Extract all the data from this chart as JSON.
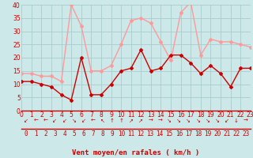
{
  "hours": [
    0,
    1,
    2,
    3,
    4,
    5,
    6,
    7,
    8,
    9,
    10,
    11,
    12,
    13,
    14,
    15,
    16,
    17,
    18,
    19,
    20,
    21,
    22,
    23
  ],
  "wind_avg": [
    11,
    11,
    10,
    9,
    6,
    4,
    20,
    6,
    6,
    10,
    15,
    16,
    23,
    15,
    16,
    21,
    21,
    18,
    14,
    17,
    14,
    9,
    16,
    16
  ],
  "wind_gust": [
    14,
    14,
    13,
    13,
    11,
    40,
    32,
    15,
    15,
    17,
    25,
    34,
    35,
    33,
    26,
    19,
    37,
    41,
    21,
    27,
    26,
    26,
    25,
    24
  ],
  "avg_color": "#cc0000",
  "gust_color": "#ff9999",
  "bg_color": "#cce8e8",
  "grid_color": "#aacccc",
  "axis_color": "#cc0000",
  "xlabel": "Vent moyen/en rafales ( km/h )",
  "xlim_min": 0,
  "xlim_max": 23,
  "ylim_min": 0,
  "ylim_max": 40,
  "yticks": [
    0,
    5,
    10,
    15,
    20,
    25,
    30,
    35,
    40
  ],
  "xticks": [
    0,
    1,
    2,
    3,
    4,
    5,
    6,
    7,
    8,
    9,
    10,
    11,
    12,
    13,
    14,
    15,
    16,
    17,
    18,
    19,
    20,
    21,
    22,
    23
  ],
  "arrows": [
    "↙",
    "←",
    "←",
    "↙",
    "↙",
    "↘",
    "↙",
    "←",
    "↖",
    "↑",
    "↑",
    "↗",
    "↗",
    "→",
    "→",
    "↘",
    "↘",
    "↘",
    "↘",
    "↘",
    "↘",
    "↙",
    "↓",
    "→"
  ],
  "tick_fontsize": 5.5,
  "xlabel_fontsize": 6.5,
  "arrow_fontsize": 5.0
}
